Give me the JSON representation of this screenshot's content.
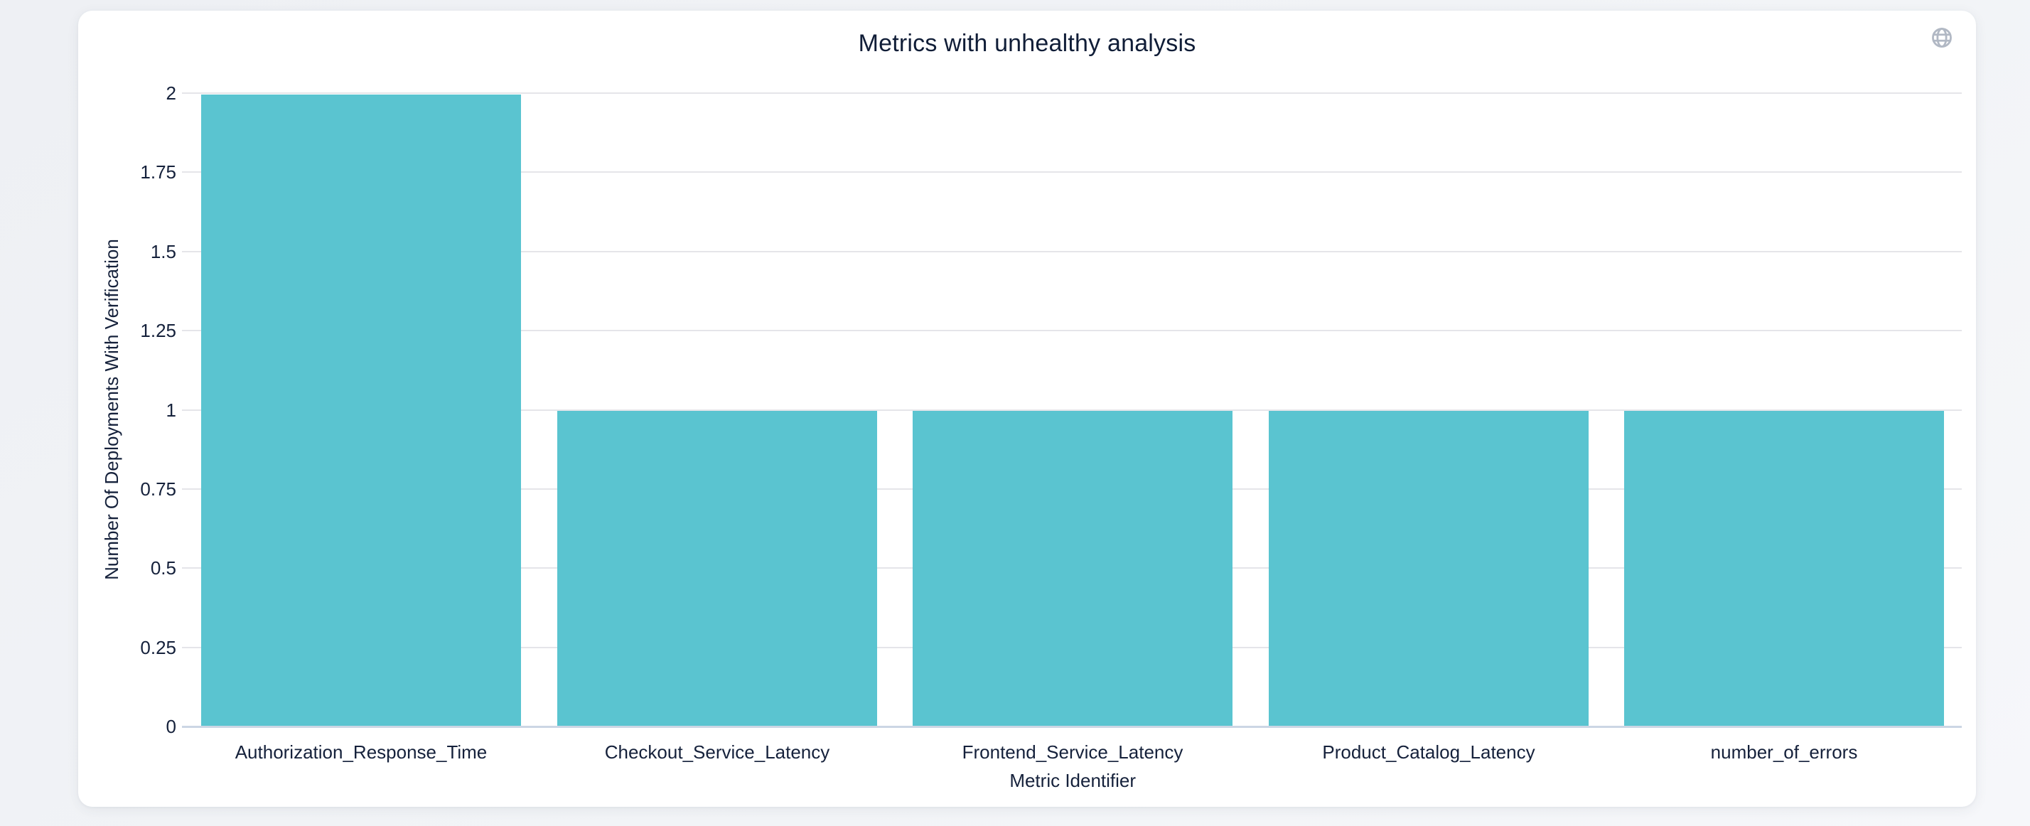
{
  "page": {
    "background_color": "#eef0f4"
  },
  "card": {
    "background_color": "#ffffff"
  },
  "header": {
    "title": "Metrics with unhealthy analysis",
    "globe_icon": "globe-icon",
    "globe_icon_color": "#b1b8c4"
  },
  "chart_data": {
    "type": "bar",
    "title": "Metrics with unhealthy analysis",
    "categories": [
      "Authorization_Response_Time",
      "Checkout_Service_Latency",
      "Frontend_Service_Latency",
      "Product_Catalog_Latency",
      "number_of_errors"
    ],
    "values": [
      2,
      1,
      1,
      1,
      1
    ],
    "xlabel": "Metric Identifier",
    "ylabel": "Number Of Deployments With Verification",
    "ylim": [
      0,
      2
    ],
    "yticks": [
      0,
      0.25,
      0.5,
      0.75,
      1,
      1.25,
      1.5,
      1.75,
      2
    ],
    "ytick_labels": [
      "0",
      "0.25",
      "0.5",
      "0.75",
      "1",
      "1.25",
      "1.5",
      "1.75",
      "2"
    ],
    "grid": true,
    "legend": "none",
    "bar_color": "#5ac4d0",
    "text_color": "#15213b",
    "gridline_color": "#e5e5e9",
    "axis_line_color": "#ccd6e4"
  }
}
